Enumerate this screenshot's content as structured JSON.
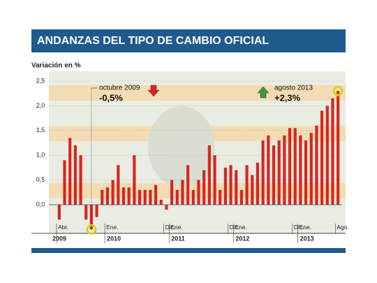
{
  "chart_data": {
    "type": "bar",
    "title": "ANDANZAS DEL TIPO DE CAMBIO OFICIAL",
    "ylabel": "Variación en %",
    "categories": [
      "Abr.",
      null,
      null,
      null,
      null,
      null,
      null,
      null,
      null,
      "Ene.",
      null,
      null,
      null,
      null,
      null,
      null,
      null,
      null,
      null,
      null,
      "Dic.",
      "Ene.",
      null,
      null,
      null,
      null,
      null,
      null,
      null,
      null,
      null,
      null,
      "Dic.",
      "Ene.",
      null,
      null,
      null,
      null,
      null,
      null,
      null,
      null,
      null,
      null,
      "Dic.",
      "Ene.",
      null,
      null,
      null,
      null,
      null,
      null,
      "Ago."
    ],
    "values": [
      -0.3,
      0.9,
      1.35,
      1.2,
      1.0,
      -0.3,
      -0.5,
      -0.25,
      0.3,
      0.35,
      0.5,
      0.8,
      0.35,
      0.35,
      1.0,
      0.3,
      0.3,
      0.3,
      0.4,
      0.1,
      -0.1,
      0.5,
      0.3,
      0.5,
      0.8,
      0.3,
      0.5,
      0.7,
      1.2,
      1.0,
      0.3,
      0.75,
      0.8,
      0.7,
      0.3,
      0.8,
      0.6,
      0.85,
      1.3,
      1.4,
      1.2,
      1.3,
      1.4,
      1.55,
      1.55,
      1.4,
      1.3,
      1.45,
      1.6,
      1.9,
      2.0,
      2.15,
      2.3
    ],
    "years": [
      "2009",
      "2010",
      "2011",
      "2012",
      "2013"
    ],
    "color": "#d7261e",
    "ylim": [
      -0.55,
      2.55
    ],
    "yticks": [
      {
        "value": 0,
        "label": "0,0"
      },
      {
        "value": 0.5,
        "label": "0,5"
      },
      {
        "value": 1,
        "label": "1,0"
      },
      {
        "value": 1.5,
        "label": "1,5"
      },
      {
        "value": 2,
        "label": "2,0"
      },
      {
        "value": 2.5,
        "label": "2,5"
      }
    ],
    "annotations": [
      {
        "text": "octubre 2009",
        "value_label": "-0,5%"
      },
      {
        "text": "agosto 2013",
        "value_label": "+2,3%"
      }
    ]
  }
}
